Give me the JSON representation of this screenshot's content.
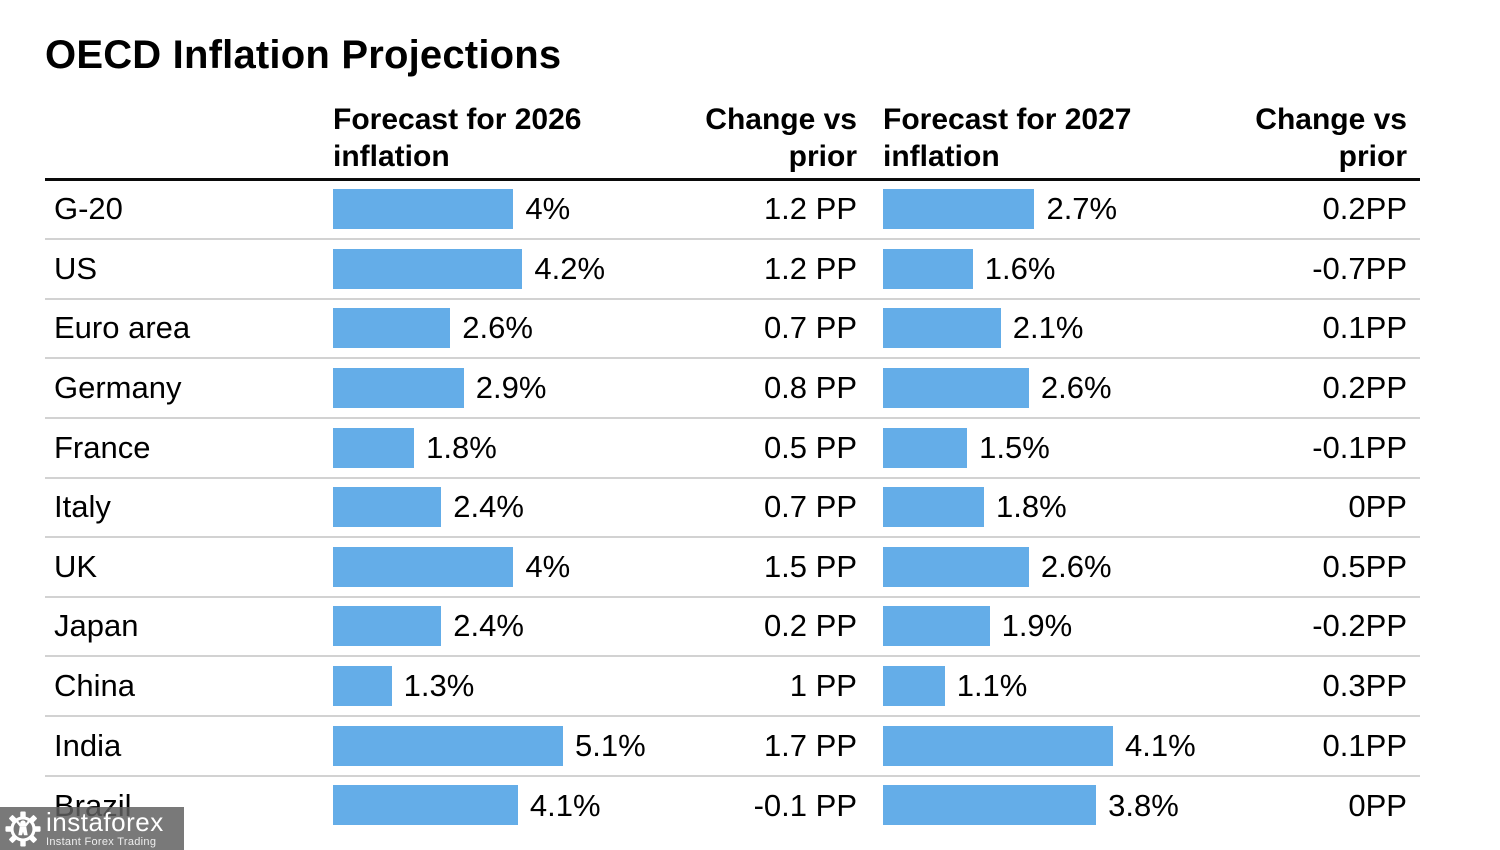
{
  "title": "OECD Inflation Projections",
  "headers": {
    "forecast_2026": "Forecast for 2026\ninflation",
    "change_2026": "Change vs\nprior",
    "forecast_2027": "Forecast for 2027\ninflation",
    "change_2027": "Change vs\nprior"
  },
  "chart_data": {
    "type": "bar",
    "orientation": "horizontal",
    "title": "OECD Inflation Projections",
    "bar_color": "#64ADE8",
    "grid": "row-separators-only",
    "categories": [
      "G-20",
      "US",
      "Euro area",
      "Germany",
      "France",
      "Italy",
      "UK",
      "Japan",
      "China",
      "India",
      "Brazil"
    ],
    "series": [
      {
        "name": "Forecast for 2026 inflation",
        "unit": "%",
        "values": [
          4,
          4.2,
          2.6,
          2.9,
          1.8,
          2.4,
          4,
          2.4,
          1.3,
          5.1,
          4.1
        ],
        "labels": [
          "4%",
          "4.2%",
          "2.6%",
          "2.9%",
          "1.8%",
          "2.4%",
          "4%",
          "2.4%",
          "1.3%",
          "5.1%",
          "4.1%"
        ]
      },
      {
        "name": "Change vs prior (2026)",
        "unit": "PP",
        "values": [
          1.2,
          1.2,
          0.7,
          0.8,
          0.5,
          0.7,
          1.5,
          0.2,
          1,
          1.7,
          -0.1
        ],
        "labels": [
          "1.2 PP",
          "1.2 PP",
          "0.7 PP",
          "0.8 PP",
          "0.5 PP",
          "0.7 PP",
          "1.5 PP",
          "0.2 PP",
          "1 PP",
          "1.7 PP",
          "-0.1 PP"
        ]
      },
      {
        "name": "Forecast for 2027 inflation",
        "unit": "%",
        "values": [
          2.7,
          1.6,
          2.1,
          2.6,
          1.5,
          1.8,
          2.6,
          1.9,
          1.1,
          4.1,
          3.8
        ],
        "labels": [
          "2.7%",
          "1.6%",
          "2.1%",
          "2.6%",
          "1.5%",
          "1.8%",
          "2.6%",
          "1.9%",
          "1.1%",
          "4.1%",
          "3.8%"
        ]
      },
      {
        "name": "Change vs prior (2027)",
        "unit": "PP",
        "values": [
          0.2,
          -0.7,
          0.1,
          0.2,
          -0.1,
          0,
          0.5,
          -0.2,
          0.3,
          0.1,
          0
        ],
        "labels": [
          "0.2PP",
          "-0.7PP",
          "0.1PP",
          "0.2PP",
          "-0.1PP",
          "0PP",
          "0.5PP",
          "-0.2PP",
          "0.3PP",
          "0.1PP",
          "0PP"
        ]
      }
    ]
  },
  "watermark": {
    "brand": "instaforex",
    "tagline": "Instant Forex Trading",
    "icon": "gear-person-icon"
  }
}
